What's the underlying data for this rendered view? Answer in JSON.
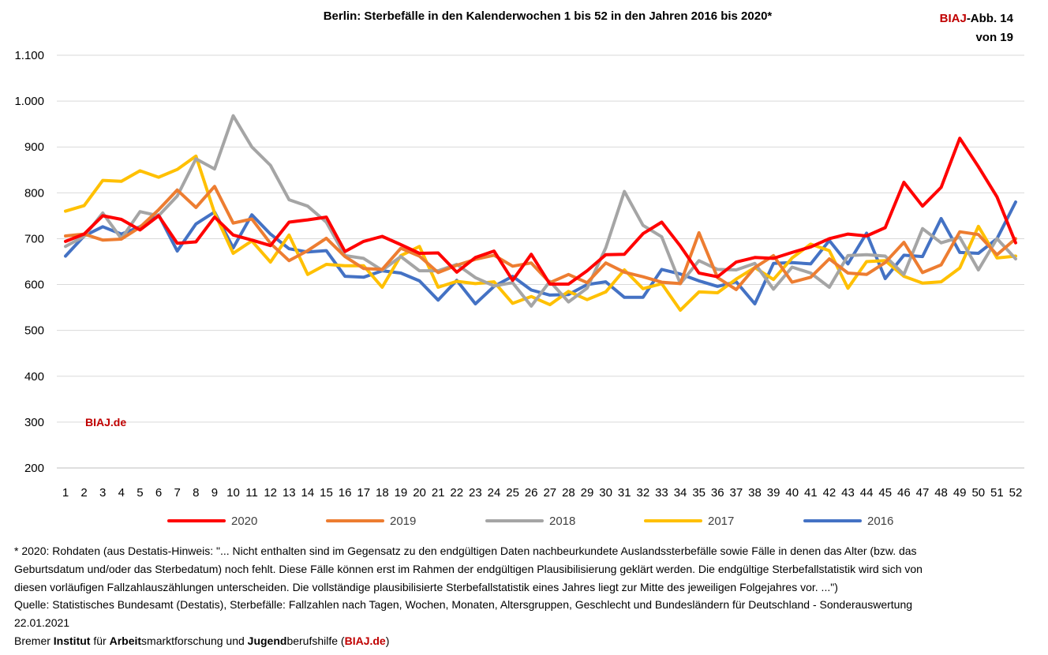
{
  "header": {
    "title": "Berlin: Sterbefälle in den Kalenderwochen 1 bis 52 in den Jahren 2016 bis 2020*",
    "badge_brand": "BIAJ",
    "badge_rest": "-Abb. 14",
    "badge_line2": "von 19"
  },
  "watermark": "BIAJ.de",
  "chart_data": {
    "type": "line",
    "title": "Berlin: Sterbefälle in den Kalenderwochen 1 bis 52 in den Jahren 2016 bis 2020*",
    "xlabel": "",
    "ylabel": "",
    "ylim": [
      200,
      1100
    ],
    "yticks": [
      200,
      300,
      400,
      500,
      600,
      700,
      800,
      900,
      1000,
      1100
    ],
    "ytick_labels": [
      "200",
      "300",
      "400",
      "500",
      "600",
      "700",
      "800",
      "900",
      "1.000",
      "1.100"
    ],
    "categories": [
      "1",
      "2",
      "3",
      "4",
      "5",
      "6",
      "7",
      "8",
      "9",
      "10",
      "11",
      "12",
      "13",
      "14",
      "15",
      "16",
      "17",
      "18",
      "19",
      "20",
      "21",
      "22",
      "23",
      "24",
      "25",
      "26",
      "27",
      "28",
      "29",
      "30",
      "31",
      "32",
      "33",
      "34",
      "35",
      "36",
      "37",
      "38",
      "39",
      "40",
      "41",
      "42",
      "43",
      "44",
      "45",
      "46",
      "47",
      "48",
      "49",
      "50",
      "51",
      "52"
    ],
    "grid": true,
    "legend_position": "bottom",
    "series": [
      {
        "name": "2016",
        "color": "#4472c4",
        "values": [
          662,
          706,
          726,
          710,
          726,
          752,
          673,
          732,
          758,
          680,
          752,
          710,
          678,
          671,
          674,
          618,
          616,
          630,
          625,
          608,
          566,
          609,
          558,
          596,
          618,
          588,
          577,
          578,
          600,
          606,
          572,
          572,
          633,
          623,
          608,
          596,
          606,
          558,
          646,
          648,
          645,
          696,
          645,
          712,
          613,
          664,
          661,
          744,
          670,
          668,
          700,
          780
        ]
      },
      {
        "name": "2017",
        "color": "#ffc000",
        "values": [
          760,
          772,
          827,
          825,
          848,
          834,
          851,
          880,
          756,
          668,
          695,
          649,
          708,
          622,
          644,
          641,
          641,
          594,
          663,
          683,
          594,
          607,
          602,
          606,
          559,
          574,
          556,
          585,
          567,
          584,
          632,
          591,
          602,
          544,
          584,
          582,
          612,
          637,
          611,
          658,
          688,
          674,
          592,
          650,
          652,
          618,
          603,
          606,
          636,
          727,
          658,
          662
        ]
      },
      {
        "name": "2018",
        "color": "#a5a5a5",
        "values": [
          683,
          705,
          756,
          700,
          759,
          750,
          793,
          874,
          852,
          968,
          900,
          860,
          785,
          771,
          736,
          663,
          657,
          631,
          661,
          630,
          630,
          644,
          615,
          597,
          604,
          553,
          607,
          562,
          592,
          680,
          803,
          729,
          704,
          602,
          652,
          633,
          632,
          646,
          590,
          638,
          625,
          594,
          663,
          665,
          662,
          622,
          722,
          691,
          703,
          632,
          700,
          656
        ]
      },
      {
        "name": "2019",
        "color": "#ed7d31",
        "values": [
          706,
          710,
          697,
          699,
          725,
          763,
          806,
          768,
          814,
          734,
          743,
          690,
          652,
          674,
          701,
          661,
          635,
          633,
          679,
          662,
          626,
          642,
          655,
          664,
          640,
          647,
          604,
          622,
          604,
          647,
          627,
          617,
          605,
          602,
          713,
          615,
          589,
          637,
          663,
          605,
          616,
          656,
          625,
          622,
          648,
          692,
          626,
          643,
          715,
          709,
          665,
          700
        ]
      },
      {
        "name": "2020",
        "color": "#ff0000",
        "values": [
          694,
          710,
          750,
          742,
          719,
          750,
          690,
          693,
          747,
          708,
          697,
          685,
          736,
          741,
          747,
          672,
          694,
          705,
          687,
          668,
          669,
          627,
          659,
          673,
          609,
          666,
          601,
          601,
          630,
          665,
          666,
          711,
          736,
          684,
          625,
          617,
          649,
          659,
          657,
          670,
          682,
          700,
          710,
          706,
          724,
          823,
          771,
          812,
          919,
          857,
          791,
          691
        ]
      }
    ]
  },
  "footer": {
    "note_line1": "* 2020: Rohdaten (aus Destatis-Hinweis: \"... Nicht enthalten sind im Gegensatz zu den endgültigen Daten nachbeurkundete Auslandssterbefälle sowie Fälle in denen das Alter (bzw. das",
    "note_line2": "Geburtsdatum und/oder das Sterbedatum) noch fehlt. Diese Fälle können erst im Rahmen der endgültigen Plausibilisierung geklärt werden. Die endgültige Sterbefallstatistik wird sich von",
    "note_line3": "diesen vorläufigen Fallzahlauszählungen unterscheiden. Die vollständige plausibilisierte Sterbefallstatistik eines Jahres liegt zur Mitte des jeweiligen Folgejahres vor. ...\")",
    "source_line1": "Quelle: Statistisches Bundesamt (Destatis), Sterbefälle: Fallzahlen nach Tagen, Wochen, Monaten, Altersgruppen, Geschlecht und Bundesländern für Deutschland - Sonderauswertung",
    "source_line2": "22.01.2021",
    "org_p1": "Bremer ",
    "org_b1": "Institut",
    "org_p2": " für ",
    "org_b2": "Arbeit",
    "org_p3": "smarktforschung und ",
    "org_b3": "Jugend",
    "org_p4": "berufshilfe (",
    "org_brand": "BIAJ.de",
    "org_p5": ")"
  }
}
